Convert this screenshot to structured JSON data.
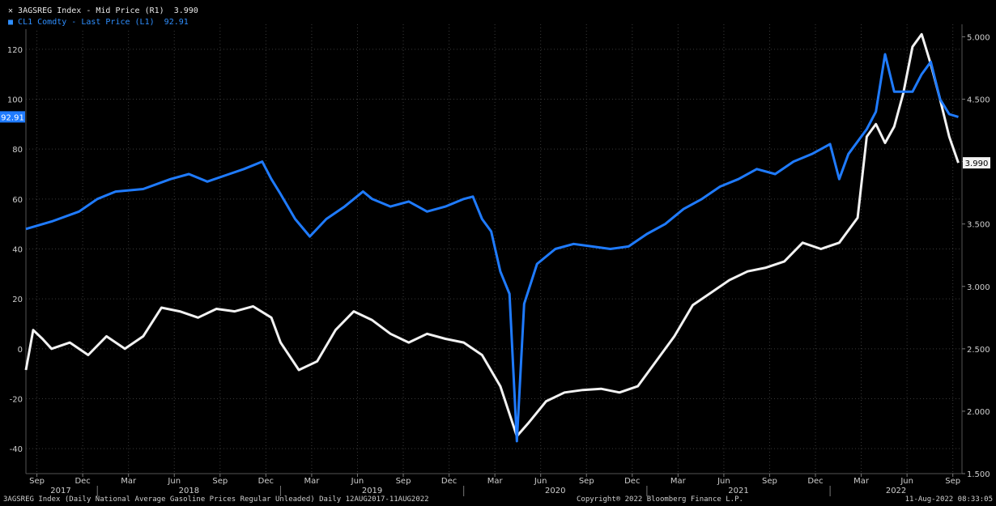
{
  "legend": [
    {
      "label": "3AGSREG Index - Mid Price (R1)",
      "value": "3.990",
      "color": "#f2f2f2"
    },
    {
      "label": "CL1 Comdty - Last Price (L1)",
      "value": "92.91",
      "color": "#1f7bff"
    }
  ],
  "footer": {
    "source": "3AGSREG Index (Daily National Average Gasoline Prices Regular Unleaded)  Daily 12AUG2017-11AUG2022",
    "copyright": "Copyright® 2022 Bloomberg Finance L.P.",
    "timestamp": "11-Aug-2022 08:33:05"
  },
  "chart_data": {
    "type": "line",
    "x_axis": {
      "month_ticks": [
        "Sep",
        "Dec",
        "Mar",
        "Jun",
        "Sep",
        "Dec",
        "Mar",
        "Jun",
        "Sep",
        "Dec",
        "Mar",
        "Jun",
        "Sep",
        "Dec",
        "Mar",
        "Jun",
        "Sep",
        "Dec",
        "Mar",
        "Jun",
        "Sep"
      ],
      "year_labels": [
        "2017",
        "2018",
        "2019",
        "2020",
        "2021",
        "2022"
      ]
    },
    "left_axis": {
      "range": [
        -50,
        130
      ],
      "ticks": [
        "120",
        "100",
        "80",
        "60",
        "40",
        "20",
        "0",
        "-20",
        "-40"
      ],
      "last_value_tag": "92.91"
    },
    "right_axis": {
      "range": [
        1.5,
        5.1
      ],
      "ticks": [
        "5.000",
        "4.500",
        "4.000",
        "3.500",
        "3.000",
        "2.500",
        "2.000",
        "1.500"
      ],
      "last_value_tag": "3.990"
    },
    "grid": true,
    "series": [
      {
        "name": "CL1 Comdty - Last Price (L1)",
        "axis": "left",
        "color": "#1f7bff",
        "points": [
          [
            2017.61,
            48
          ],
          [
            2017.75,
            51
          ],
          [
            2017.9,
            55
          ],
          [
            2018.0,
            60
          ],
          [
            2018.1,
            63
          ],
          [
            2018.25,
            64
          ],
          [
            2018.4,
            68
          ],
          [
            2018.5,
            70
          ],
          [
            2018.6,
            67
          ],
          [
            2018.72,
            70
          ],
          [
            2018.8,
            72
          ],
          [
            2018.9,
            75
          ],
          [
            2018.95,
            68
          ],
          [
            2019.0,
            62
          ],
          [
            2019.08,
            52
          ],
          [
            2019.16,
            45
          ],
          [
            2019.25,
            52
          ],
          [
            2019.35,
            57
          ],
          [
            2019.45,
            63
          ],
          [
            2019.5,
            60
          ],
          [
            2019.6,
            57
          ],
          [
            2019.7,
            59
          ],
          [
            2019.8,
            55
          ],
          [
            2019.9,
            57
          ],
          [
            2020.0,
            60
          ],
          [
            2020.05,
            61
          ],
          [
            2020.1,
            52
          ],
          [
            2020.15,
            47
          ],
          [
            2020.2,
            31
          ],
          [
            2020.25,
            22
          ],
          [
            2020.29,
            -37
          ],
          [
            2020.33,
            18
          ],
          [
            2020.4,
            34
          ],
          [
            2020.5,
            40
          ],
          [
            2020.6,
            42
          ],
          [
            2020.7,
            41
          ],
          [
            2020.8,
            40
          ],
          [
            2020.9,
            41
          ],
          [
            2021.0,
            46
          ],
          [
            2021.1,
            50
          ],
          [
            2021.2,
            56
          ],
          [
            2021.3,
            60
          ],
          [
            2021.4,
            65
          ],
          [
            2021.5,
            68
          ],
          [
            2021.6,
            72
          ],
          [
            2021.7,
            70
          ],
          [
            2021.8,
            75
          ],
          [
            2021.9,
            78
          ],
          [
            2022.0,
            82
          ],
          [
            2022.05,
            68
          ],
          [
            2022.1,
            78
          ],
          [
            2022.2,
            88
          ],
          [
            2022.25,
            95
          ],
          [
            2022.3,
            118
          ],
          [
            2022.35,
            103
          ],
          [
            2022.45,
            103
          ],
          [
            2022.5,
            110
          ],
          [
            2022.55,
            115
          ],
          [
            2022.6,
            100
          ],
          [
            2022.65,
            94
          ],
          [
            2022.7,
            92.91
          ]
        ]
      },
      {
        "name": "3AGSREG Index - Mid Price (R1)",
        "axis": "right",
        "color": "#f2f2f2",
        "points": [
          [
            2017.61,
            2.33
          ],
          [
            2017.65,
            2.65
          ],
          [
            2017.7,
            2.58
          ],
          [
            2017.75,
            2.5
          ],
          [
            2017.85,
            2.55
          ],
          [
            2017.95,
            2.45
          ],
          [
            2018.05,
            2.6
          ],
          [
            2018.15,
            2.5
          ],
          [
            2018.25,
            2.6
          ],
          [
            2018.35,
            2.83
          ],
          [
            2018.45,
            2.8
          ],
          [
            2018.55,
            2.75
          ],
          [
            2018.65,
            2.82
          ],
          [
            2018.75,
            2.8
          ],
          [
            2018.85,
            2.84
          ],
          [
            2018.95,
            2.75
          ],
          [
            2019.0,
            2.55
          ],
          [
            2019.1,
            2.33
          ],
          [
            2019.2,
            2.4
          ],
          [
            2019.3,
            2.65
          ],
          [
            2019.4,
            2.8
          ],
          [
            2019.5,
            2.73
          ],
          [
            2019.6,
            2.62
          ],
          [
            2019.7,
            2.55
          ],
          [
            2019.8,
            2.62
          ],
          [
            2019.9,
            2.58
          ],
          [
            2020.0,
            2.55
          ],
          [
            2020.1,
            2.45
          ],
          [
            2020.2,
            2.2
          ],
          [
            2020.29,
            1.8
          ],
          [
            2020.35,
            1.9
          ],
          [
            2020.45,
            2.08
          ],
          [
            2020.55,
            2.15
          ],
          [
            2020.65,
            2.17
          ],
          [
            2020.75,
            2.18
          ],
          [
            2020.85,
            2.15
          ],
          [
            2020.95,
            2.2
          ],
          [
            2021.05,
            2.4
          ],
          [
            2021.15,
            2.6
          ],
          [
            2021.25,
            2.85
          ],
          [
            2021.35,
            2.95
          ],
          [
            2021.45,
            3.05
          ],
          [
            2021.55,
            3.12
          ],
          [
            2021.65,
            3.15
          ],
          [
            2021.75,
            3.2
          ],
          [
            2021.85,
            3.35
          ],
          [
            2021.95,
            3.3
          ],
          [
            2022.05,
            3.35
          ],
          [
            2022.15,
            3.55
          ],
          [
            2022.2,
            4.2
          ],
          [
            2022.25,
            4.3
          ],
          [
            2022.3,
            4.15
          ],
          [
            2022.35,
            4.28
          ],
          [
            2022.4,
            4.55
          ],
          [
            2022.45,
            4.92
          ],
          [
            2022.5,
            5.02
          ],
          [
            2022.55,
            4.78
          ],
          [
            2022.6,
            4.5
          ],
          [
            2022.65,
            4.2
          ],
          [
            2022.7,
            3.99
          ]
        ]
      }
    ]
  }
}
